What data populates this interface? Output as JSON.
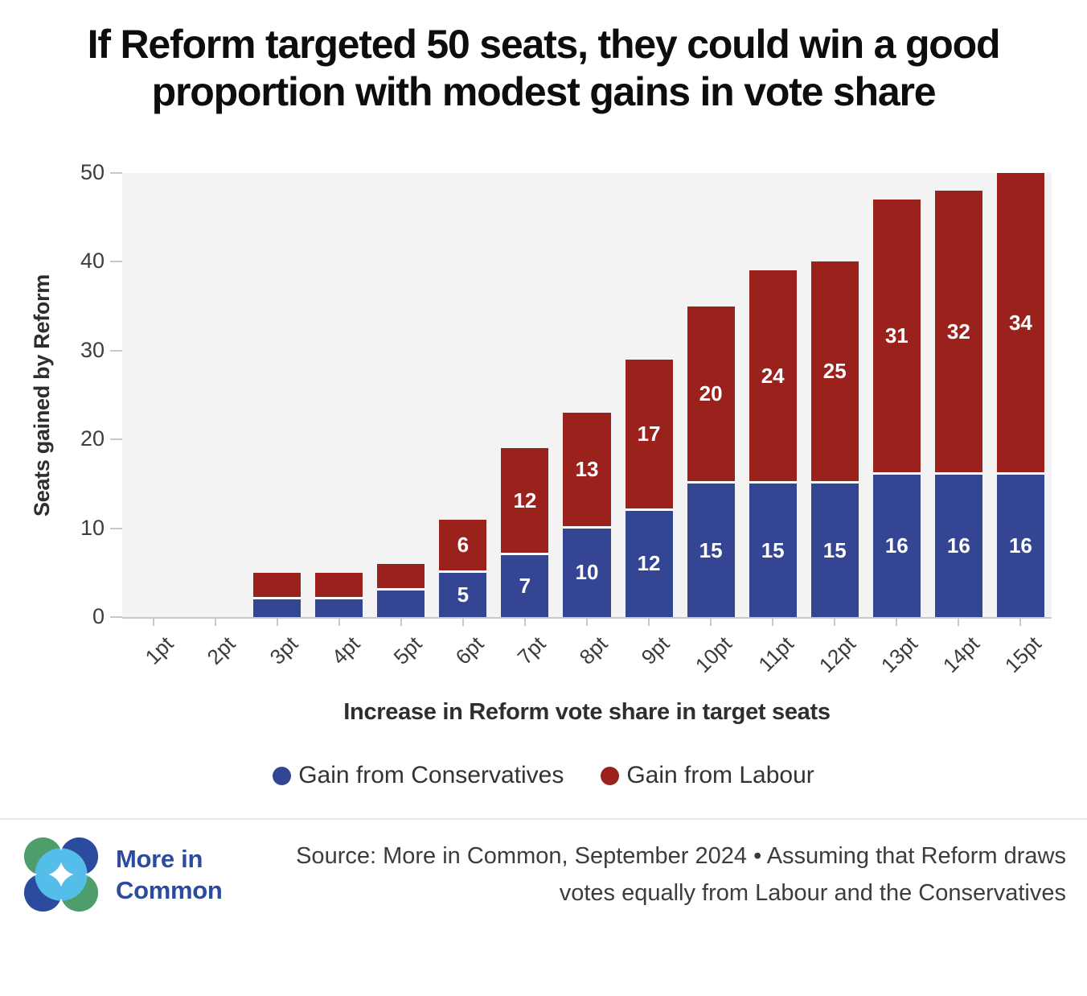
{
  "chart_data": {
    "type": "bar",
    "stacked": true,
    "title": "If Reform targeted 50 seats, they could win a good proportion with modest gains in vote share",
    "categories": [
      "1pt",
      "2pt",
      "3pt",
      "4pt",
      "5pt",
      "6pt",
      "7pt",
      "8pt",
      "9pt",
      "10pt",
      "11pt",
      "12pt",
      "13pt",
      "14pt",
      "15pt"
    ],
    "series": [
      {
        "name": "Gain from Conservatives",
        "color": "#344594",
        "values": [
          0,
          0,
          2,
          2,
          3,
          5,
          7,
          10,
          12,
          15,
          15,
          15,
          16,
          16,
          16
        ]
      },
      {
        "name": "Gain from Labour",
        "color": "#9a211c",
        "values": [
          0,
          0,
          3,
          3,
          3,
          6,
          12,
          13,
          17,
          20,
          24,
          25,
          31,
          32,
          34
        ]
      }
    ],
    "totals": [
      0,
      0,
      5,
      5,
      6,
      11,
      19,
      23,
      29,
      35,
      39,
      40,
      47,
      48,
      50
    ],
    "xlabel": "Increase in Reform vote share in target seats",
    "ylabel": "Seats gained by Reform",
    "ylim": [
      0,
      50
    ],
    "yticks": [
      0,
      10,
      20,
      30,
      40,
      50
    ],
    "label_min_value": 5,
    "grid": false,
    "legend_position": "bottom",
    "plot_bg": "#f3f3f3",
    "axis_color": "#c9c9c9",
    "bar_label_color": "#ffffff"
  },
  "footer": {
    "logo": {
      "line1": "More in",
      "line2": "Common",
      "colors": {
        "blue": "#2b4b9e",
        "green": "#4d9e6a",
        "light_blue": "#55bde9"
      }
    },
    "source_line1": "Source: More in Common, September 2024 • Assuming that Reform draws",
    "source_line2": "votes equally from Labour and the Conservatives"
  }
}
